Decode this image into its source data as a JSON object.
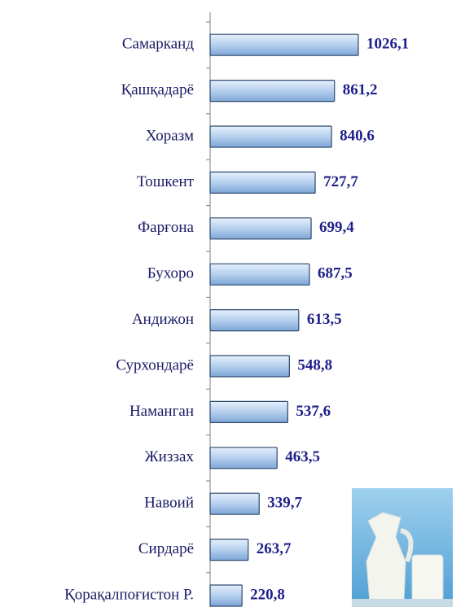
{
  "chart_data": {
    "type": "bar",
    "orientation": "horizontal",
    "categories": [
      "Самарканд",
      "Қашқадарё",
      "Хоразм",
      "Тошкент",
      "Фарғона",
      "Бухоро",
      "Андижон",
      "Сурхондарё",
      "Наманган",
      "Жиззах",
      "Навоий",
      "Сирдарё",
      "Қорақалпоғистон Р."
    ],
    "values": [
      1026.1,
      861.2,
      840.6,
      727.7,
      699.4,
      687.5,
      613.5,
      548.8,
      537.6,
      463.5,
      339.7,
      263.7,
      220.8
    ],
    "value_labels": [
      "1026,1",
      "861,2",
      "840,6",
      "727,7",
      "699,4",
      "687,5",
      "613,5",
      "548,8",
      "537,6",
      "463,5",
      "339,7",
      "263,7",
      "220,8"
    ],
    "color": "#a9c8ea",
    "label_color": "#1f1f8c"
  }
}
